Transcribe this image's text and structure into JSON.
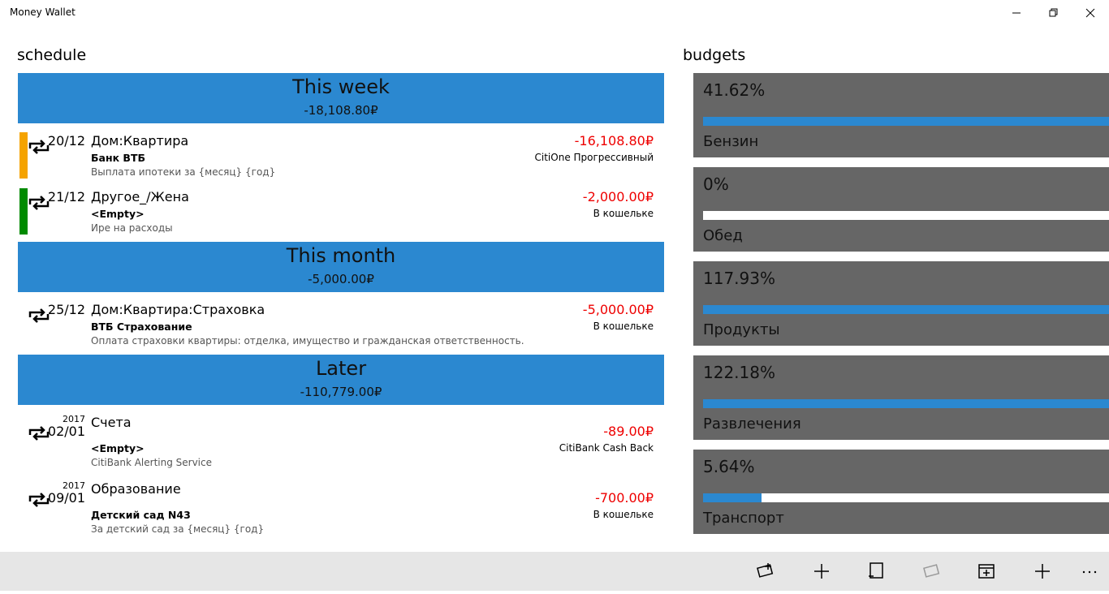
{
  "app": {
    "title": "Money Wallet"
  },
  "schedule": {
    "title": "schedule",
    "groups": [
      {
        "title": "This week",
        "total": "-18,108.80₽",
        "items": [
          {
            "date": "20/12",
            "category": "Дом:Квартира",
            "account": "Банк ВТБ",
            "note": "Выплата ипотеки за {месяц} {год}",
            "amount": "-16,108.80₽",
            "wallet": "CitiOne Прогрессивный",
            "stripe": "#f5a300"
          },
          {
            "date": "21/12",
            "category": "Другое_/Жена",
            "account": "<Empty>",
            "note": "Ире на расходы",
            "amount": "-2,000.00₽",
            "wallet": "В кошельке",
            "stripe": "#008a00"
          }
        ]
      },
      {
        "title": "This month",
        "total": "-5,000.00₽",
        "items": [
          {
            "date": "25/12",
            "category": "Дом:Квартира:Страховка",
            "account": "ВТБ Страхование",
            "note": "Оплата страховки квартиры: отделка, имущество и гражданская ответственность.",
            "amount": "-5,000.00₽",
            "wallet": "В кошельке"
          }
        ]
      },
      {
        "title": "Later",
        "total": "-110,779.00₽",
        "items": [
          {
            "year": "2017",
            "date": "02/01",
            "category": "Счета",
            "account": "<Empty>",
            "note": "CitiBank Alerting Service",
            "amount": "-89.00₽",
            "wallet": "CitiBank Cash Back"
          },
          {
            "year": "2017",
            "date": "09/01",
            "category": "Образование",
            "account": "Детский сад N43",
            "note": "За детский сад за {месяц} {год}",
            "amount": "-700.00₽",
            "wallet": "В кошельке"
          }
        ]
      }
    ]
  },
  "budgets": {
    "title": "budgets",
    "items": [
      {
        "label": "41.62%",
        "value": 41.62,
        "name": "Бензин"
      },
      {
        "label": "0%",
        "value": 0,
        "name": "Обед"
      },
      {
        "label": "117.93%",
        "value": 117.93,
        "name": "Продукты"
      },
      {
        "label": "122.18%",
        "value": 122.18,
        "name": "Развлечения"
      },
      {
        "label": "5.64%",
        "value": 5.64,
        "name": "Транспорт"
      }
    ]
  }
}
